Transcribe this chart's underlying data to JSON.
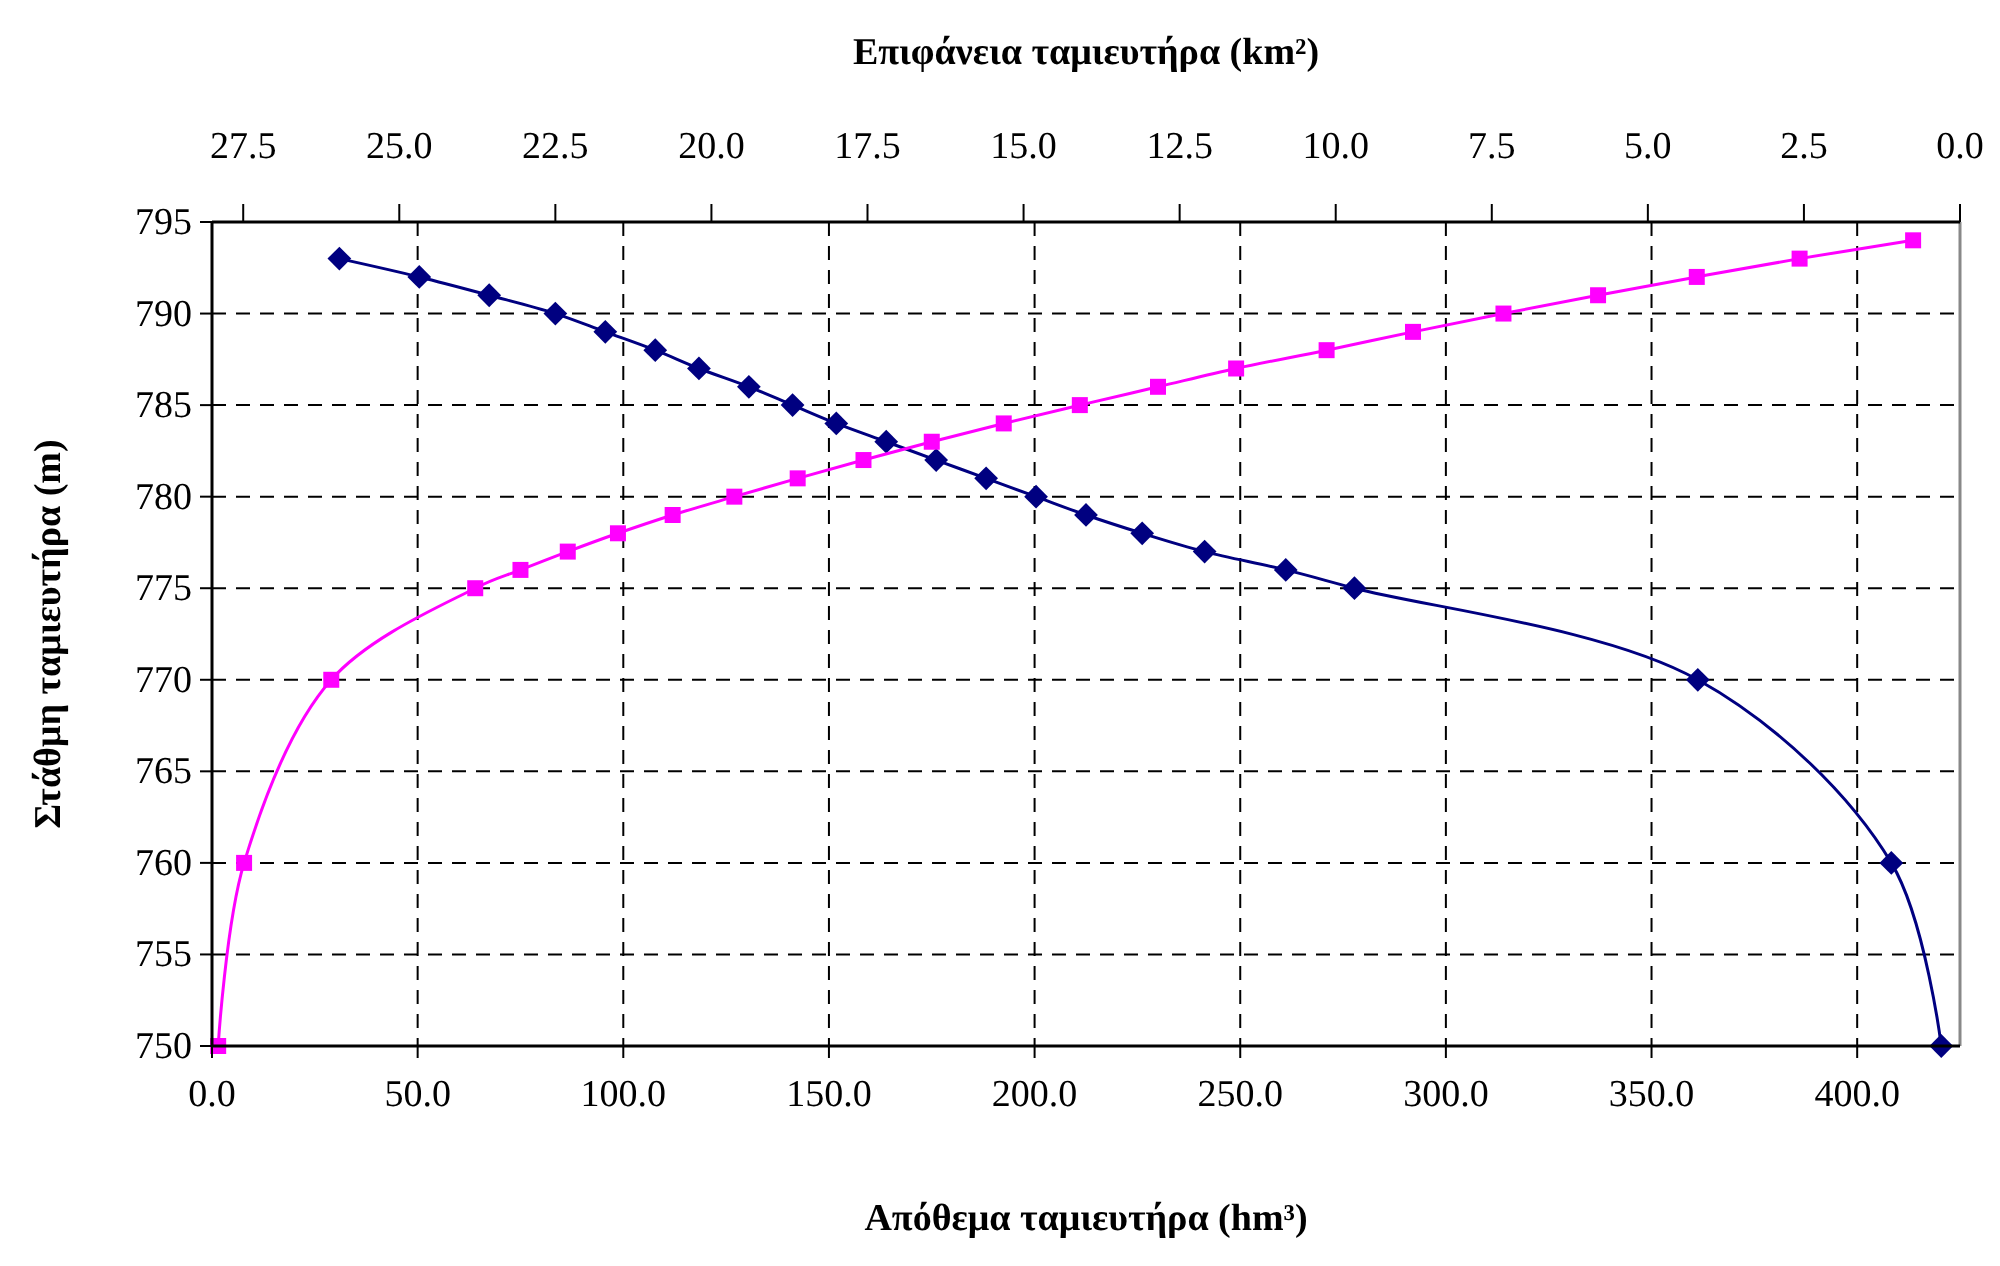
{
  "chart_data": {
    "type": "line",
    "xlabel": "Απόθεμα ταμιευτήρα (hm³)",
    "x2label": "Επιφάνεια ταμιευτήρα (km²)",
    "ylabel": "Στάθμη ταμιευτήρα (m)",
    "xlim": [
      0,
      425
    ],
    "xticks": [
      {
        "value": 0,
        "label": "0.0"
      },
      {
        "value": 50,
        "label": "50.0"
      },
      {
        "value": 100,
        "label": "100.0"
      },
      {
        "value": 150,
        "label": "150.0"
      },
      {
        "value": 200,
        "label": "200.0"
      },
      {
        "value": 250,
        "label": "250.0"
      },
      {
        "value": 300,
        "label": "300.0"
      },
      {
        "value": 350,
        "label": "350.0"
      },
      {
        "value": 400,
        "label": "400.0"
      }
    ],
    "x2lim": [
      28,
      0
    ],
    "x2ticks": [
      27.5,
      {
        "value": 25,
        "label": "25.0"
      },
      22.5,
      {
        "value": 20,
        "label": "20.0"
      },
      17.5,
      {
        "value": 15,
        "label": "15.0"
      },
      12.5,
      {
        "value": 10,
        "label": "10.0"
      },
      7.5,
      {
        "value": 5,
        "label": "5.0"
      },
      2.5,
      {
        "value": 0,
        "label": "0.0"
      }
    ],
    "ylim": [
      750,
      795
    ],
    "yticks": [
      750,
      755,
      760,
      765,
      770,
      775,
      780,
      785,
      790,
      795
    ],
    "grid": true,
    "line_style": "solid",
    "series": [
      {
        "axis": "x2",
        "color": "#000080",
        "marker": "diamond",
        "x": [
          25.96,
          24.68,
          23.56,
          22.5,
          21.7,
          20.9,
          20.2,
          19.4,
          18.7,
          18.0,
          17.2,
          16.4,
          15.6,
          14.8,
          14.0,
          13.1,
          12.1,
          10.8,
          9.7,
          4.2,
          1.1,
          0.3
        ],
        "values": [
          793,
          792,
          791,
          790,
          789,
          788,
          787,
          786,
          785,
          784,
          783,
          782,
          781,
          780,
          779,
          778,
          777,
          776,
          775,
          770,
          760,
          750
        ]
      },
      {
        "color": "#ff00ff",
        "marker": "square",
        "x": [
          1.5,
          7.8,
          29,
          64,
          75,
          86.5,
          98.7,
          112,
          127,
          142.4,
          158.4,
          175,
          192.5,
          211,
          230,
          249,
          271,
          292,
          314,
          337,
          361,
          386,
          413.6
        ],
        "values": [
          750,
          760,
          770,
          775,
          776,
          777,
          778,
          779,
          780,
          781,
          782,
          783,
          784,
          785,
          786,
          787,
          788,
          789,
          790,
          791,
          792,
          793,
          794
        ]
      }
    ]
  }
}
